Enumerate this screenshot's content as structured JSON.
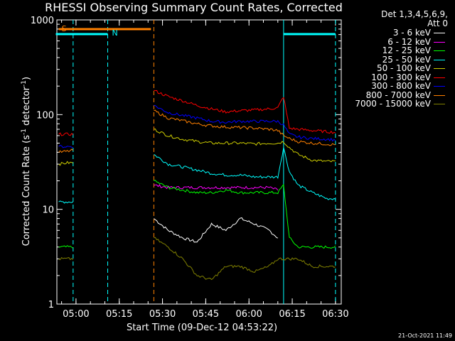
{
  "chart_data": {
    "type": "line",
    "title": "RHESSI Observing Summary Count Rates, Corrected",
    "xlabel": "Start Time (09-Dec-12 04:53:22)",
    "ylabel_pre": "Corrected Count Rate (s",
    "ylabel_sup1": "-1",
    "ylabel_mid": " detector",
    "ylabel_sup2": "-1",
    "ylabel_post": ")",
    "yscale": "log",
    "ylim": [
      1,
      1000
    ],
    "xlim": [
      "04:53:22",
      "06:32:00"
    ],
    "x_ticks": [
      "05:00",
      "05:15",
      "05:30",
      "05:45",
      "06:00",
      "06:15",
      "06:30"
    ],
    "y_ticks": [
      1,
      10,
      100,
      1000
    ],
    "y_tick_labels": [
      "1",
      "10",
      "100",
      "1000"
    ],
    "legend_header": [
      "Det 1,3,4,5,6,9,",
      "Att 0"
    ],
    "legend_position": "right",
    "x_time_points": [
      "04:54",
      "04:57",
      "04:59",
      "05:27",
      "05:32",
      "05:37",
      "05:42",
      "05:47",
      "05:52",
      "05:57",
      "06:02",
      "06:07",
      "06:10",
      "06:12",
      "06:14",
      "06:17",
      "06:22",
      "06:27",
      "06:30"
    ],
    "series": [
      {
        "name": "3 - 6 keV",
        "color": "#000000",
        "values": [
          null,
          null,
          null,
          8,
          6,
          5,
          4.5,
          7,
          6,
          8,
          7,
          6,
          5,
          null,
          null,
          null,
          null,
          null,
          null
        ]
      },
      {
        "name": "6 - 12 keV",
        "color": "#ff00ff",
        "values": [
          null,
          null,
          null,
          18,
          17,
          17,
          17,
          17,
          17,
          17,
          17,
          17,
          16,
          null,
          null,
          null,
          null,
          null,
          null
        ]
      },
      {
        "name": "12 - 25 keV",
        "color": "#00ff00",
        "values": [
          4,
          4,
          4,
          20,
          17,
          16,
          15,
          15,
          16,
          15,
          15,
          15,
          15,
          18,
          5,
          4,
          4,
          4,
          4
        ]
      },
      {
        "name": "25 - 50 keV",
        "color": "#00ffff",
        "values": [
          12,
          12,
          12,
          38,
          30,
          28,
          26,
          24,
          23,
          23,
          22,
          22,
          22,
          45,
          25,
          18,
          15,
          13,
          13
        ]
      },
      {
        "name": "50 - 100 keV",
        "color": "#cccc00",
        "values": [
          30,
          31,
          31,
          70,
          60,
          55,
          52,
          50,
          50,
          50,
          49,
          50,
          50,
          52,
          45,
          38,
          33,
          32,
          32
        ]
      },
      {
        "name": "100 - 300 keV",
        "color": "#ff0000",
        "values": [
          62,
          62,
          62,
          180,
          155,
          140,
          125,
          115,
          107,
          110,
          112,
          115,
          118,
          155,
          72,
          70,
          68,
          66,
          65
        ]
      },
      {
        "name": "300 - 800 keV",
        "color": "#0000ff",
        "values": [
          46,
          46,
          46,
          125,
          105,
          98,
          92,
          85,
          83,
          85,
          85,
          85,
          85,
          78,
          62,
          58,
          56,
          55,
          54
        ]
      },
      {
        "name": "800 - 7000 keV",
        "color": "#ff8000",
        "values": [
          40,
          41,
          42,
          110,
          92,
          86,
          80,
          76,
          74,
          73,
          72,
          70,
          68,
          60,
          56,
          52,
          50,
          49,
          48
        ]
      },
      {
        "name": "7000 - 15000 keV",
        "color": "#808000",
        "values": [
          3,
          3,
          3,
          5,
          4,
          3,
          2,
          1.8,
          2.5,
          2.5,
          2.2,
          2.5,
          3,
          3,
          3,
          3,
          2.5,
          2.5,
          2.5
        ]
      }
    ],
    "annotations": [
      {
        "label": "S",
        "color": "#ff8000",
        "from": "04:54",
        "to": "05:26"
      },
      {
        "label": "N",
        "color": "#00ffff",
        "from": "04:53",
        "to": "05:11"
      },
      {
        "label": "",
        "color": "#00ffff",
        "from": "06:12",
        "to": "06:30"
      }
    ],
    "vertical_markers": [
      {
        "time": "04:59",
        "color": "#00ffff",
        "style": "dashed"
      },
      {
        "time": "05:11",
        "color": "#00ffff",
        "style": "dashed"
      },
      {
        "time": "05:27",
        "color": "#ff8000",
        "style": "dashed"
      },
      {
        "time": "06:12",
        "color": "#00ffff",
        "style": "solid"
      },
      {
        "time": "06:30",
        "color": "#00ffff",
        "style": "dashed"
      }
    ]
  },
  "footer": {
    "timestamp": "21-Oct-2021 11:49"
  }
}
